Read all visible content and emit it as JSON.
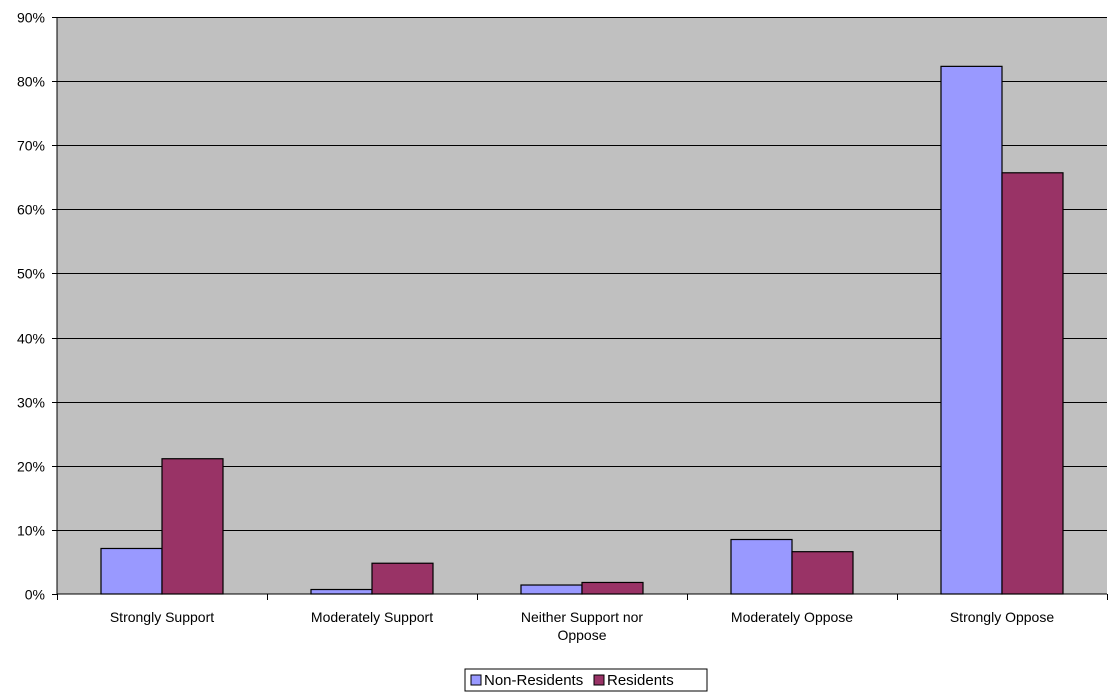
{
  "chart_data": {
    "type": "bar",
    "categories": [
      "Strongly Support",
      "Moderately Support",
      "Neither Support nor Oppose",
      "Moderately Oppose",
      "Strongly Oppose"
    ],
    "category_lines": [
      [
        "Strongly Support"
      ],
      [
        "Moderately Support"
      ],
      [
        "Neither Support nor",
        "Oppose"
      ],
      [
        "Moderately Oppose"
      ],
      [
        "Strongly Oppose"
      ]
    ],
    "series": [
      {
        "name": "Non-Residents",
        "values": [
          7.1,
          0.7,
          1.4,
          8.5,
          82.3
        ],
        "color": "#9999ff"
      },
      {
        "name": "Residents",
        "values": [
          21.1,
          4.8,
          1.8,
          6.6,
          65.7
        ],
        "color": "#993366"
      }
    ],
    "ylim": [
      0,
      90
    ],
    "yticks": [
      0,
      10,
      20,
      30,
      40,
      50,
      60,
      70,
      80,
      90
    ],
    "ytick_labels": [
      "0%",
      "10%",
      "20%",
      "30%",
      "40%",
      "50%",
      "60%",
      "70%",
      "80%",
      "90%"
    ],
    "grid": true,
    "plot_background": "#c0c0c0",
    "legend_position": "bottom-center",
    "title": "",
    "xlabel": "",
    "ylabel": ""
  }
}
